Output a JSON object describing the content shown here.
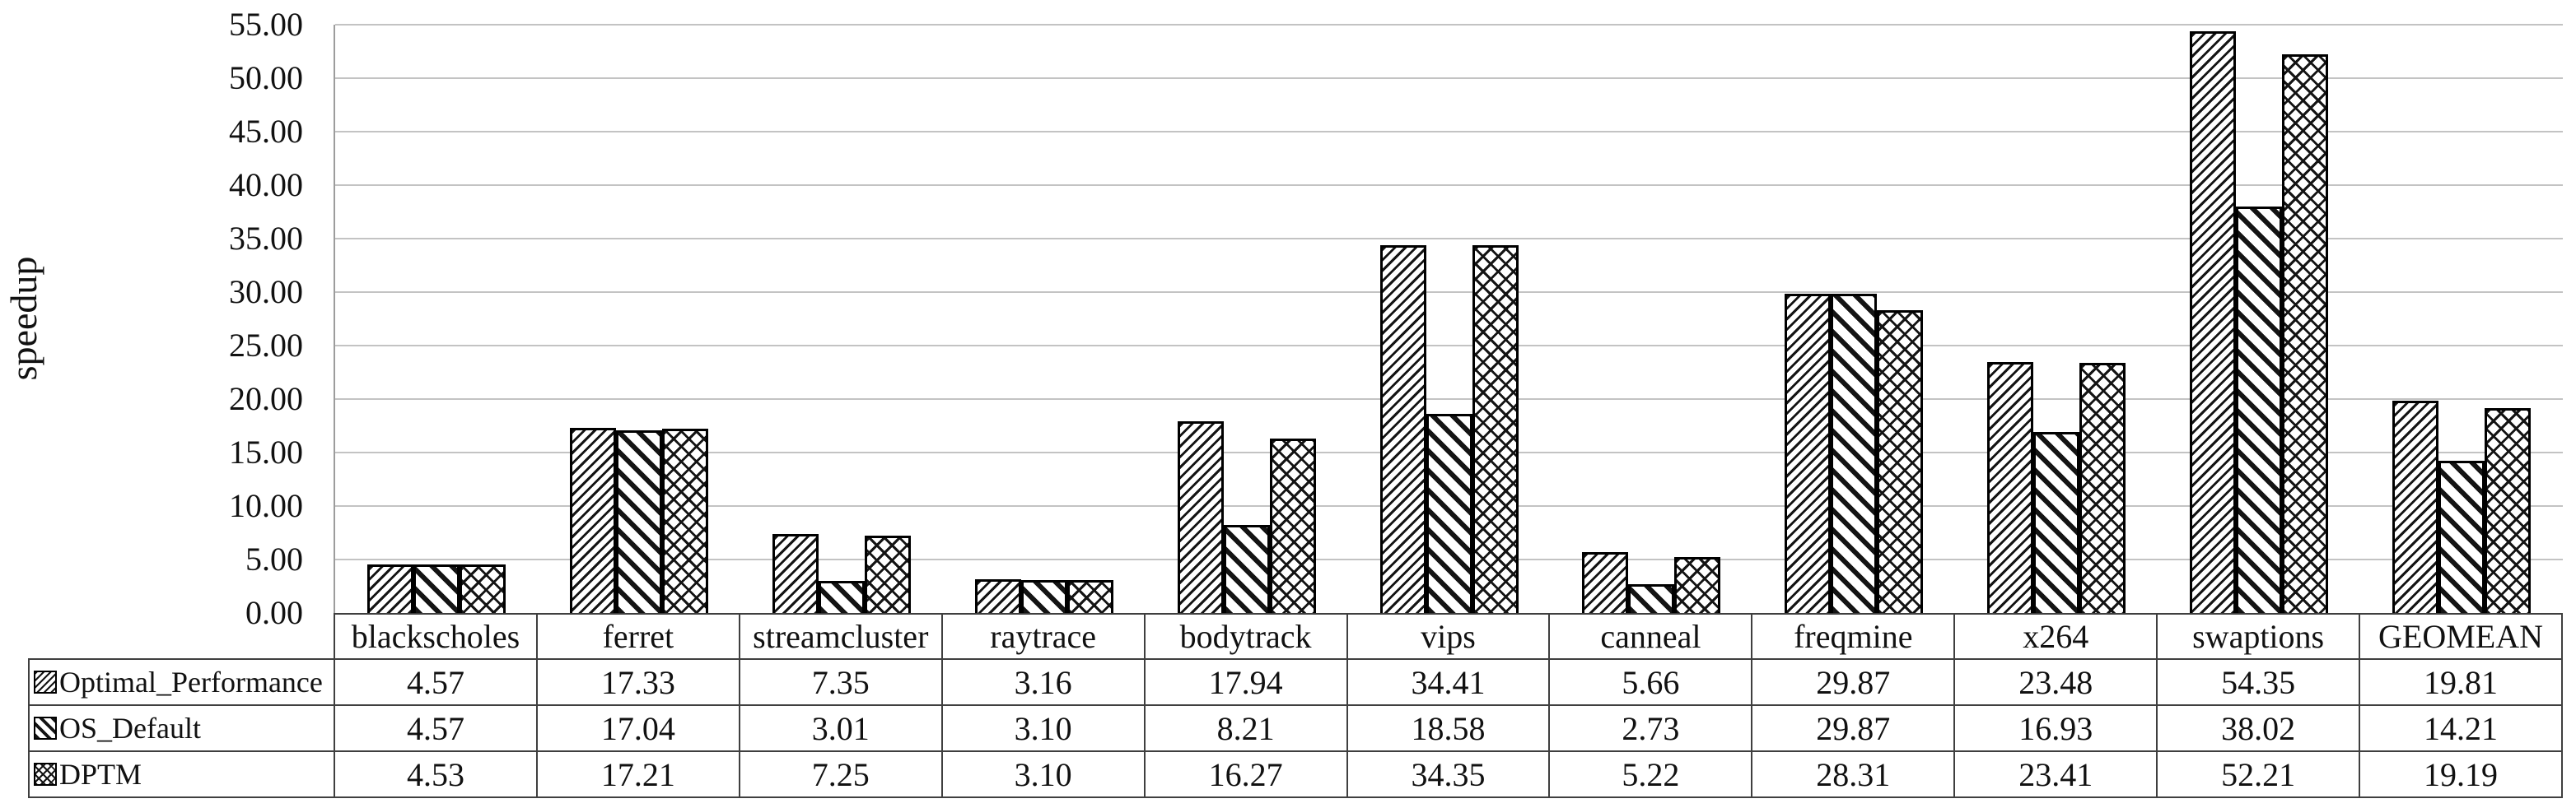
{
  "chart_data": {
    "type": "bar",
    "ylabel": "speedup",
    "ylim": [
      0,
      55
    ],
    "ytick_step": 5,
    "ytick_format_decimals": 2,
    "grid": true,
    "legend_position": "table-left",
    "categories": [
      "blackscholes",
      "ferret",
      "streamcluster",
      "raytrace",
      "bodytrack",
      "vips",
      "canneal",
      "freqmine",
      "x264",
      "swaptions",
      "GEOMEAN"
    ],
    "series": [
      {
        "name": "Optimal_Performance",
        "pattern": "fine-diagonal-up-hatch",
        "values": [
          4.57,
          17.33,
          7.35,
          3.16,
          17.94,
          34.41,
          5.66,
          29.87,
          23.48,
          54.35,
          19.81
        ]
      },
      {
        "name": "OS_Default",
        "pattern": "bold-diagonal-down-stripes",
        "values": [
          4.57,
          17.04,
          3.01,
          3.1,
          8.21,
          18.58,
          2.73,
          29.87,
          16.93,
          38.02,
          14.21
        ]
      },
      {
        "name": "DPTM",
        "pattern": "diagonal-crosshatch",
        "values": [
          4.53,
          17.21,
          7.25,
          3.1,
          16.27,
          34.35,
          5.22,
          28.31,
          23.41,
          52.21,
          19.19
        ]
      }
    ]
  },
  "colors": {
    "background": "#ffffff",
    "bar_fill": "#ffffff",
    "bar_stroke": "#000000",
    "gridline": "#c3c3c3",
    "axis_line": "#9c9c9c",
    "table_border": "#3f3f3f",
    "text": "#111111"
  }
}
